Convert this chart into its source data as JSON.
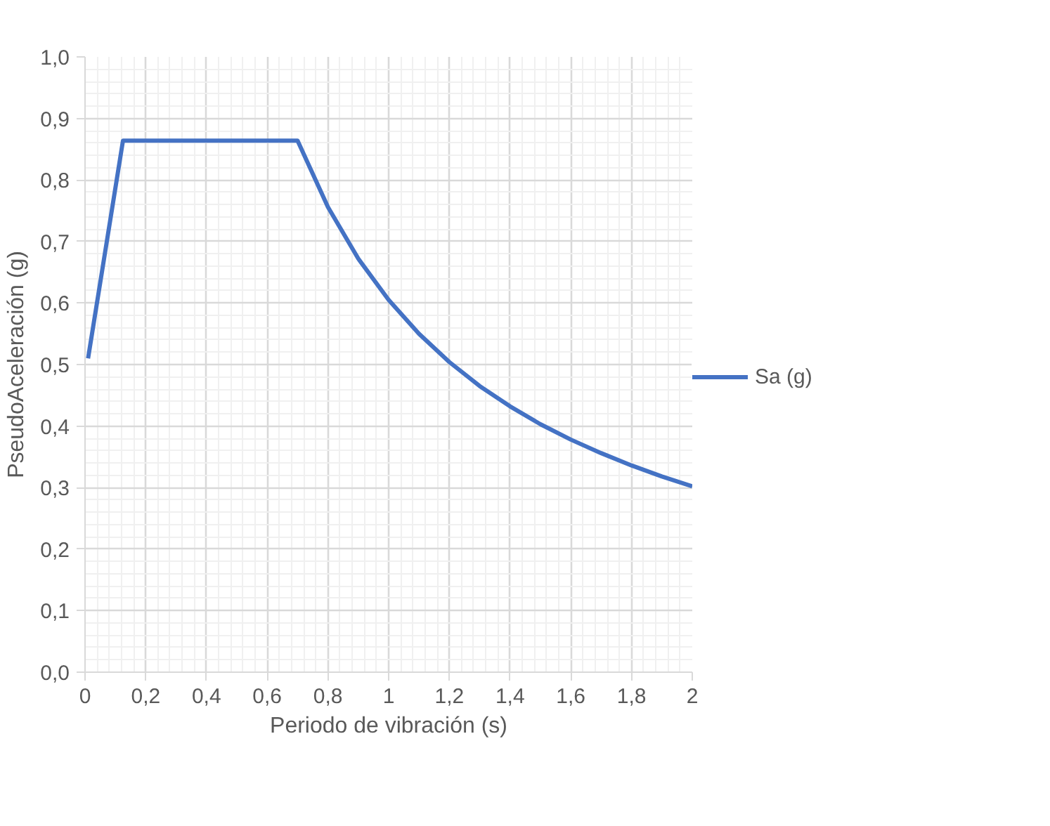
{
  "chart_data": {
    "type": "line",
    "xlabel": "Periodo de vibración (s)",
    "ylabel": "PseudoAceleración (g)",
    "xlim": [
      0,
      2
    ],
    "ylim": [
      0,
      1
    ],
    "xticks": [
      0,
      {
        "value": 0.2,
        "label": "0,2"
      },
      {
        "value": 0.4,
        "label": "0,4"
      },
      {
        "value": 0.6,
        "label": "0,6"
      },
      {
        "value": 0.8,
        "label": "0,8"
      },
      1,
      {
        "value": 1.2,
        "label": "1,2"
      },
      {
        "value": 1.4,
        "label": "1,4"
      },
      {
        "value": 1.6,
        "label": "1,6"
      },
      {
        "value": 1.8,
        "label": "1,8"
      },
      2
    ],
    "yticks": [
      {
        "value": 0,
        "label": "0,0"
      },
      {
        "value": 0.1,
        "label": "0,1"
      },
      {
        "value": 0.2,
        "label": "0,2"
      },
      {
        "value": 0.3,
        "label": "0,3"
      },
      {
        "value": 0.4,
        "label": "0,4"
      },
      {
        "value": 0.5,
        "label": "0,5"
      },
      {
        "value": 0.6,
        "label": "0,6"
      },
      {
        "value": 0.7,
        "label": "0,7"
      },
      {
        "value": 0.8,
        "label": "0,8"
      },
      {
        "value": 0.9,
        "label": "0,9"
      },
      {
        "value": 1.0,
        "label": "1,0"
      }
    ],
    "grid": true,
    "legend": "right",
    "marker": "none",
    "line_style": "solid",
    "series": [
      {
        "name": "Sa (g)",
        "color": "#4472c4",
        "x": [
          0.01,
          0.125,
          0.7,
          0.8,
          0.9,
          1.0,
          1.1,
          1.2,
          1.3,
          1.4,
          1.5,
          1.6,
          1.7,
          1.8,
          1.9,
          2.0
        ],
        "values": [
          0.51,
          0.864,
          0.864,
          0.756,
          0.672,
          0.605,
          0.55,
          0.504,
          0.465,
          0.432,
          0.403,
          0.378,
          0.356,
          0.336,
          0.318,
          0.302
        ]
      }
    ]
  }
}
